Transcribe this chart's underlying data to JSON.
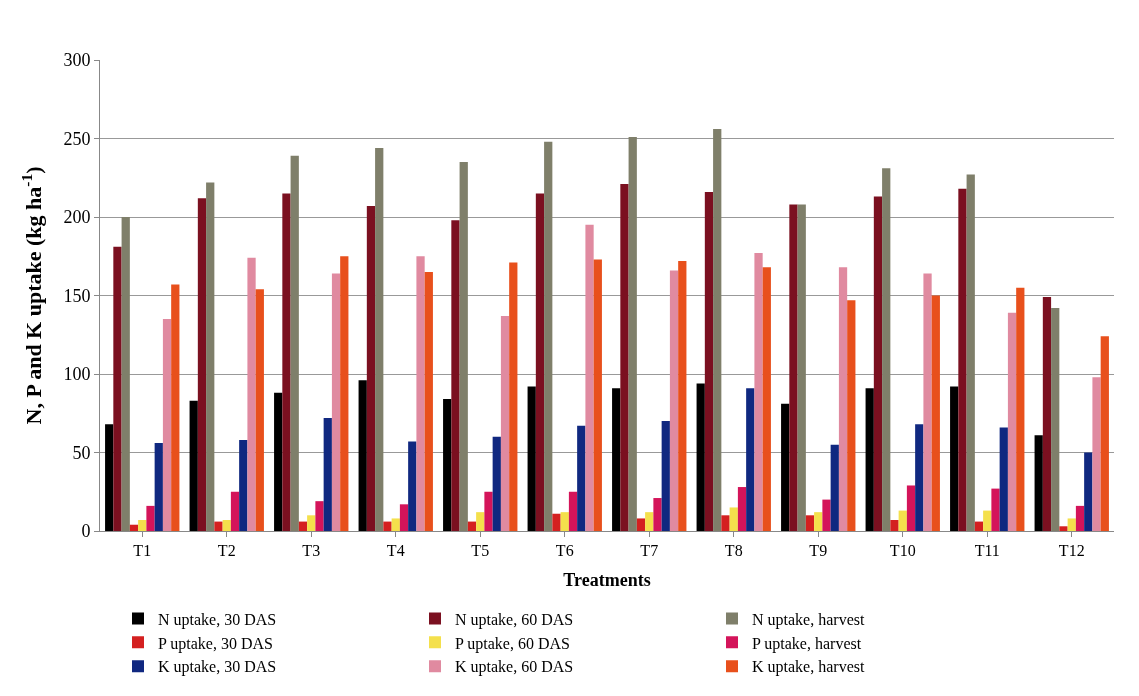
{
  "chart_data": {
    "type": "bar",
    "xlabel": "Treatments",
    "ylabel": "N, P and K uptake (kg ha$^{-1}$)",
    "categories": [
      "T1",
      "T2",
      "T3",
      "T4",
      "T5",
      "T6",
      "T7",
      "T8",
      "T9",
      "T10",
      "T11",
      "T12"
    ],
    "series": [
      {
        "name": "N uptake, 30 DAS",
        "color": "#000000",
        "values": [
          68,
          83,
          88,
          96,
          84,
          92,
          91,
          94,
          81,
          91,
          92,
          61
        ]
      },
      {
        "name": "N uptake, 60 DAS",
        "color": "#7b1020",
        "values": [
          181,
          212,
          215,
          207,
          198,
          215,
          221,
          216,
          208,
          213,
          218,
          149
        ]
      },
      {
        "name": "N uptake, harvest",
        "color": "#7f7f6a",
        "values": [
          200,
          222,
          239,
          244,
          235,
          248,
          251,
          256,
          208,
          231,
          227,
          142
        ]
      },
      {
        "name": "P uptake, 30 DAS",
        "color": "#d42020",
        "values": [
          4,
          6,
          6,
          6,
          6,
          11,
          8,
          10,
          10,
          7,
          6,
          3
        ]
      },
      {
        "name": "P uptake, 60 DAS",
        "color": "#f4e04c",
        "values": [
          7,
          7,
          10,
          8,
          12,
          12,
          12,
          15,
          12,
          13,
          13,
          8
        ]
      },
      {
        "name": "P uptake, harvest",
        "color": "#d4145a",
        "values": [
          16,
          25,
          19,
          17,
          25,
          25,
          21,
          28,
          20,
          29,
          27,
          16
        ]
      },
      {
        "name": "K uptake, 30 DAS",
        "color": "#102880",
        "values": [
          56,
          58,
          72,
          57,
          60,
          67,
          70,
          91,
          55,
          68,
          66,
          50
        ]
      },
      {
        "name": "K uptake, 60 DAS",
        "color": "#e08aa0",
        "values": [
          135,
          174,
          164,
          175,
          137,
          195,
          166,
          177,
          168,
          164,
          139,
          98
        ]
      },
      {
        "name": "K uptake, harvest",
        "color": "#e8501c",
        "values": [
          157,
          154,
          175,
          165,
          171,
          173,
          172,
          168,
          147,
          150,
          155,
          124
        ]
      }
    ],
    "ylim": [
      0,
      300
    ],
    "yticks": [
      0,
      50,
      100,
      150,
      200,
      250,
      300
    ],
    "grid": "y",
    "legend": "bottom"
  }
}
